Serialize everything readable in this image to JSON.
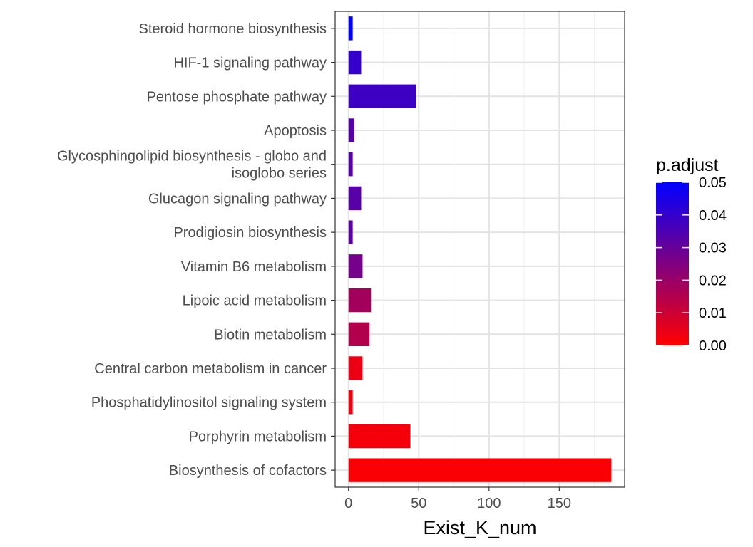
{
  "chart_data": {
    "type": "bar",
    "orientation": "horizontal",
    "categories": [
      "Steroid hormone biosynthesis",
      "HIF-1 signaling pathway",
      "Pentose phosphate pathway",
      "Apoptosis",
      [
        "Glycosphingolipid biosynthesis - globo and",
        "isoglobo series"
      ],
      "Glucagon signaling pathway",
      "Prodigiosin biosynthesis",
      "Vitamin B6 metabolism",
      "Lipoic acid metabolism",
      "Biotin metabolism",
      "Central carbon metabolism in cancer",
      "Phosphatidylinositol signaling system",
      "Porphyrin metabolism",
      "Biosynthesis of cofactors"
    ],
    "values": [
      3,
      9,
      48,
      4,
      3,
      9,
      3,
      10,
      16,
      15,
      10,
      3,
      44,
      187
    ],
    "p_adjust": [
      0.05,
      0.04,
      0.038,
      0.033,
      0.033,
      0.033,
      0.032,
      0.027,
      0.018,
      0.015,
      0.004,
      0.003,
      0.002,
      0.001
    ],
    "xlabel": "Exist_K_num",
    "ylabel": "",
    "x_ticks": [
      0,
      50,
      100,
      150
    ],
    "xlim": [
      -9.5,
      196.5
    ],
    "grid": true,
    "legend": {
      "title": "p.adjust",
      "placement": "right",
      "ticks": [
        "0.05",
        "0.04",
        "0.03",
        "0.02",
        "0.01",
        "0.00"
      ],
      "tick_values": [
        0.05,
        0.04,
        0.03,
        0.02,
        0.01,
        0.0
      ],
      "range": [
        0.0,
        0.05
      ],
      "low_color": "#ff0000",
      "high_color": "#0000ff"
    }
  }
}
